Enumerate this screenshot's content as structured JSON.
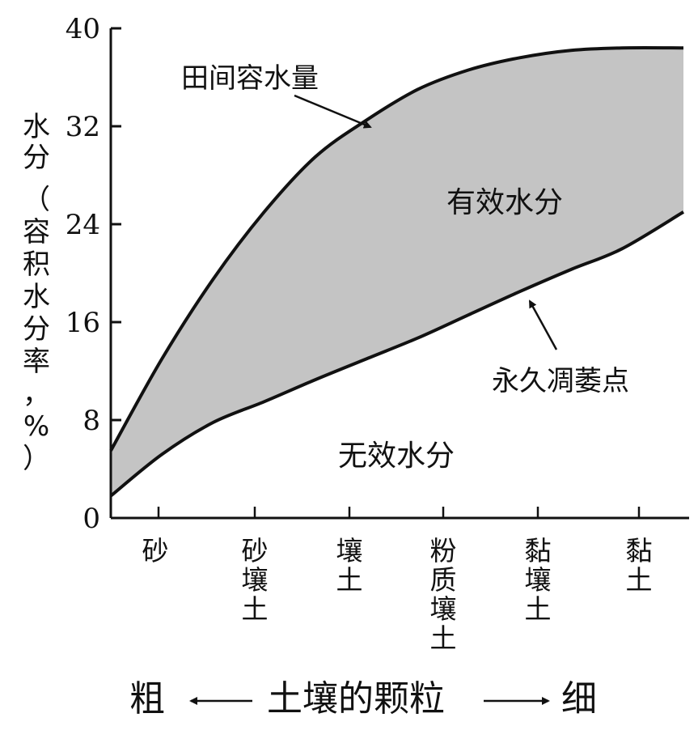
{
  "chart_data": {
    "type": "area",
    "ylabel_short": "水分",
    "ylabel_detail": "（容积水分率，%）",
    "ylim": [
      0,
      40
    ],
    "yticks": [
      "0",
      "8",
      "16",
      "24",
      "32",
      "40"
    ],
    "categories": [
      "砂",
      "砂壤土",
      "壤土",
      "粉质壤土",
      "黏壤土",
      "黏土"
    ],
    "x_axis": {
      "left_label": "粗",
      "center_label": "土壤的颗粒",
      "right_label": "细"
    },
    "series": [
      {
        "name": "田间容水量",
        "x": [
          0,
          0.5,
          1,
          1.5,
          2,
          2.5,
          3,
          3.5,
          4,
          4.5,
          5,
          5.6
        ],
        "values": [
          5.5,
          13,
          19.5,
          25,
          29.5,
          32.5,
          35,
          36.6,
          37.6,
          38.2,
          38.4,
          38.4
        ]
      },
      {
        "name": "永久凋萎点",
        "x": [
          0,
          0.5,
          1,
          1.5,
          2,
          2.5,
          3,
          3.5,
          4,
          4.5,
          5,
          5.6
        ],
        "values": [
          1.8,
          5.2,
          7.8,
          9.5,
          11.3,
          13,
          14.7,
          16.6,
          18.5,
          20.3,
          22,
          25
        ]
      }
    ],
    "regions": {
      "available": "有效水分",
      "unavailable": "无效水分"
    },
    "grid": false,
    "fill_color": "#c4c4c4",
    "line_color": "#111111"
  }
}
